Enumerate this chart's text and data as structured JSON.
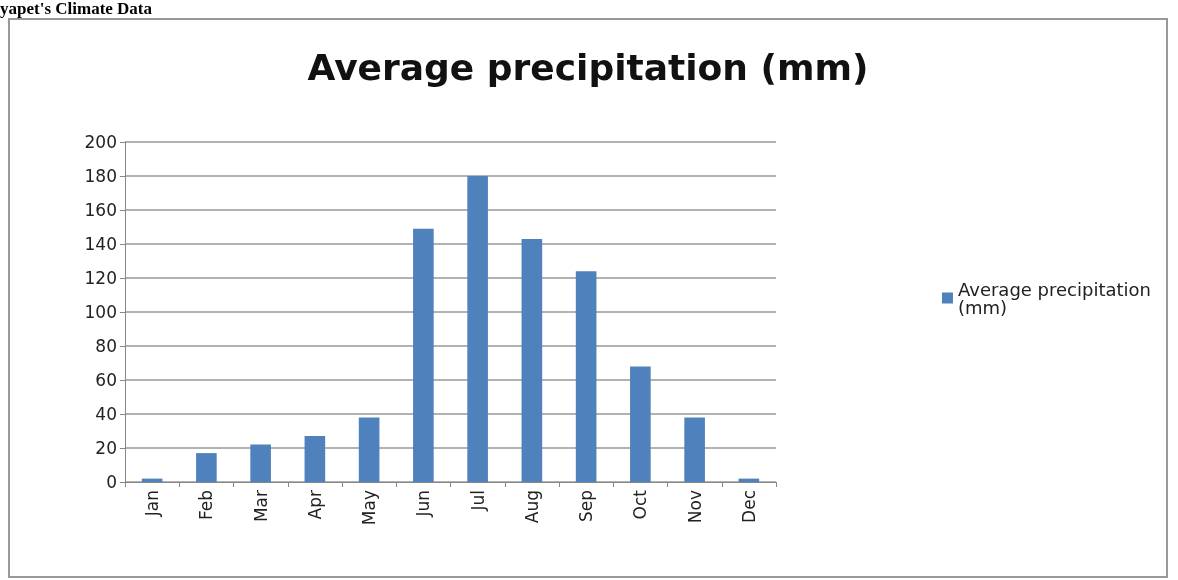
{
  "chart_data": {
    "type": "bar",
    "title": "Average precipitation (mm)",
    "annotations": [
      "yapet's Climate Data"
    ],
    "categories": [
      "Jan",
      "Feb",
      "Mar",
      "Apr",
      "May",
      "Jun",
      "Jul",
      "Aug",
      "Sep",
      "Oct",
      "Nov",
      "Dec"
    ],
    "series": [
      {
        "name": "Average precipitation (mm)",
        "color": "#4f81bd",
        "values": [
          2,
          17,
          22,
          27,
          38,
          149,
          180,
          143,
          124,
          68,
          38,
          2
        ]
      }
    ],
    "ylim": [
      0,
      200
    ],
    "yticks": [
      0,
      20,
      40,
      60,
      80,
      100,
      120,
      140,
      160,
      180,
      200
    ],
    "grid": "y",
    "legend": "right"
  }
}
